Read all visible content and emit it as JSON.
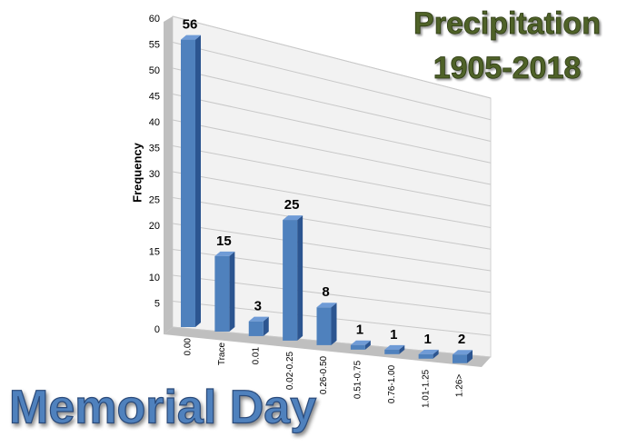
{
  "chart_data": {
    "type": "bar3d",
    "title": "Precipitation",
    "subtitle": "1905-2018",
    "caption": "Memorial Day",
    "y_label": "Frequency",
    "categories": [
      "0.00",
      "Trace",
      "0.01",
      "0.02-0.25",
      "0.26-0.50",
      "0.51-0.75",
      "0.76-1.00",
      "1.01-1.25",
      "1.26>"
    ],
    "values": [
      56,
      15,
      3,
      25,
      8,
      1,
      1,
      1,
      2
    ],
    "color": "#4f81bd",
    "ylim": [
      0,
      60
    ],
    "yticks": [
      0,
      5,
      10,
      15,
      20,
      25,
      30,
      35,
      40,
      45,
      50,
      55,
      60
    ],
    "grid": true
  }
}
